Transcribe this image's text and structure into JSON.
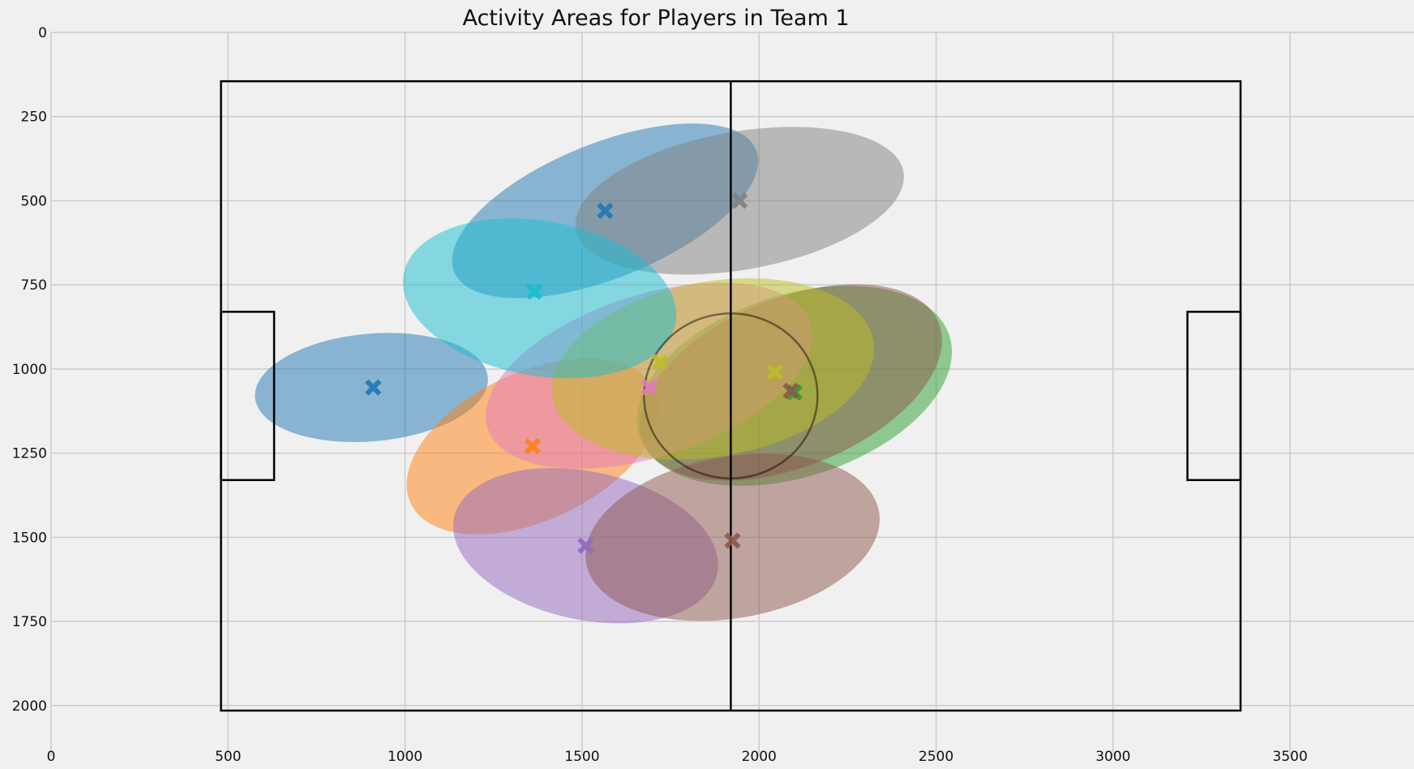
{
  "chart_data": {
    "type": "scatter",
    "title": "Activity Areas for Players in Team 1",
    "xlabel": "",
    "ylabel": "",
    "xlim": [
      0,
      3850
    ],
    "ylim": [
      2150,
      0
    ],
    "y_inverted": true,
    "grid": true,
    "xticks": [
      0,
      500,
      1000,
      1500,
      2000,
      2500,
      3000,
      3500
    ],
    "yticks": [
      0,
      250,
      500,
      750,
      1000,
      1250,
      1500,
      1750,
      2000
    ],
    "pitch": {
      "outline": {
        "x0": 480,
        "y0": 145,
        "x1": 3360,
        "y1": 2015
      },
      "halfway_x": 1920,
      "center_circle": {
        "cx": 1920,
        "cy": 1080,
        "r": 245
      },
      "left_box": {
        "x0": 480,
        "y0": 830,
        "x1": 630,
        "y1": 1330
      },
      "right_box": {
        "x0": 3210,
        "y0": 830,
        "x1": 3360,
        "y1": 1330
      }
    },
    "players": [
      {
        "marker": [
          910,
          1055
        ],
        "color": "#1f77b4",
        "ellipse": {
          "cx": 905,
          "cy": 1055,
          "rx": 330,
          "ry": 160,
          "angle": -5
        }
      },
      {
        "marker": [
          1565,
          530
        ],
        "color": "#1f77b4",
        "ellipse": {
          "cx": 1565,
          "cy": 530,
          "rx": 460,
          "ry": 200,
          "angle": -22
        }
      },
      {
        "marker": [
          1360,
          1230
        ],
        "color": "#ff7f0e",
        "ellipse": {
          "cx": 1360,
          "cy": 1230,
          "rx": 380,
          "ry": 220,
          "angle": -25
        }
      },
      {
        "marker": [
          2100,
          1070
        ],
        "color": "#2ca02c",
        "ellipse": {
          "cx": 2100,
          "cy": 1050,
          "rx": 460,
          "ry": 270,
          "angle": -18
        }
      },
      {
        "marker": [
          1510,
          1525
        ],
        "color": "#9467bd",
        "ellipse": {
          "cx": 1510,
          "cy": 1525,
          "rx": 380,
          "ry": 220,
          "angle": 12
        }
      },
      {
        "marker": [
          1925,
          1510
        ],
        "color": "#8c564b",
        "ellipse": {
          "cx": 1925,
          "cy": 1500,
          "rx": 420,
          "ry": 240,
          "angle": -10
        }
      },
      {
        "marker": [
          2090,
          1065
        ],
        "color": "#8c564b",
        "ellipse": {
          "cx": 2090,
          "cy": 1040,
          "rx": 450,
          "ry": 250,
          "angle": -22
        }
      },
      {
        "marker": [
          1690,
          1055
        ],
        "color": "#e377c2",
        "ellipse": {
          "cx": 1690,
          "cy": 1020,
          "rx": 480,
          "ry": 240,
          "angle": -18
        }
      },
      {
        "marker": [
          1945,
          500
        ],
        "color": "#7f7f7f",
        "ellipse": {
          "cx": 1945,
          "cy": 500,
          "rx": 470,
          "ry": 205,
          "angle": -10
        }
      },
      {
        "marker": [
          2045,
          1010
        ],
        "color": "#bcbd22",
        "ellipse": {
          "cx": 1870,
          "cy": 1000,
          "rx": 460,
          "ry": 260,
          "angle": -10
        }
      },
      {
        "marker": [
          1365,
          770
        ],
        "color": "#17becf",
        "ellipse": {
          "cx": 1380,
          "cy": 790,
          "rx": 390,
          "ry": 230,
          "angle": 10
        }
      },
      {
        "marker": [
          1720,
          980
        ],
        "color": "#bcbd22",
        "ellipse": null
      }
    ]
  }
}
